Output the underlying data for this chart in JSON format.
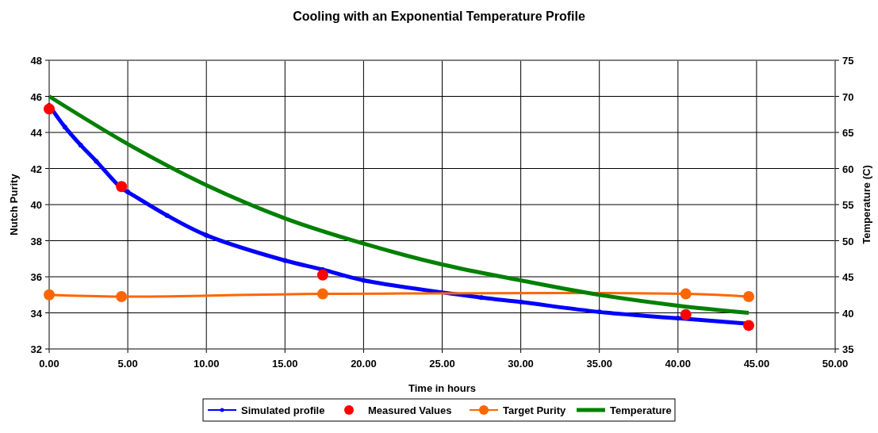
{
  "chart_data": {
    "type": "line",
    "title": "Cooling with an Exponential Temperature Profile",
    "xlabel": "Time in hours",
    "ylabel": "Nutch Purity",
    "y2label": "Temperature (C)",
    "xlim": [
      0,
      50
    ],
    "xticks": [
      {
        "value": 0,
        "label": "0.00"
      },
      {
        "value": 5,
        "label": "5.00"
      },
      {
        "value": 10,
        "label": "10.00"
      },
      {
        "value": 15,
        "label": "15.00"
      },
      {
        "value": 20,
        "label": "20.00"
      },
      {
        "value": 25,
        "label": "25.00"
      },
      {
        "value": 30,
        "label": "30.00"
      },
      {
        "value": 35,
        "label": "35.00"
      },
      {
        "value": 40,
        "label": "40.00"
      },
      {
        "value": 45,
        "label": "45.00"
      },
      {
        "value": 50,
        "label": "50.00"
      }
    ],
    "ylim": [
      32,
      48
    ],
    "yticks": [
      32,
      34,
      36,
      38,
      40,
      42,
      44,
      46,
      48
    ],
    "y2lim": [
      35,
      75
    ],
    "y2ticks": [
      35,
      40,
      45,
      50,
      55,
      60,
      65,
      70,
      75
    ],
    "grid": true,
    "legend": "bottom",
    "series": [
      {
        "name": "Simulated profile",
        "color": "#0000ff",
        "marker": "circle",
        "x": [
          0,
          1,
          2,
          3,
          4.6,
          5,
          7.5,
          10,
          15,
          17.4,
          20,
          27.5,
          30,
          35,
          40,
          44.5
        ],
        "values": [
          45.5,
          44.3,
          43.3,
          42.4,
          40.9,
          40.7,
          39.4,
          38.3,
          36.9,
          36.4,
          35.8,
          34.85,
          34.6,
          34.05,
          33.7,
          33.4
        ]
      },
      {
        "name": "Measured Values",
        "color": "#ff0000",
        "type": "scatter",
        "marker": "circle",
        "x": [
          0,
          4.6,
          17.4,
          40.5,
          44.5
        ],
        "values": [
          45.3,
          41.0,
          36.1,
          33.9,
          33.3
        ]
      },
      {
        "name": "Target Purity",
        "color": "#ff6600",
        "marker": "circle",
        "x": [
          0,
          4.6,
          17.4,
          40.5,
          44.5
        ],
        "values": [
          35.0,
          34.9,
          35.05,
          35.05,
          34.9
        ]
      },
      {
        "name": "Temperature",
        "color": "#008000",
        "marker": "none",
        "axis": "y2",
        "x": [
          0,
          5,
          10,
          15,
          20,
          25,
          30,
          35,
          40,
          44.5
        ],
        "values": [
          70,
          63.4,
          57.7,
          53.1,
          49.6,
          46.7,
          44.5,
          42.5,
          41.0,
          40.0
        ]
      }
    ]
  }
}
